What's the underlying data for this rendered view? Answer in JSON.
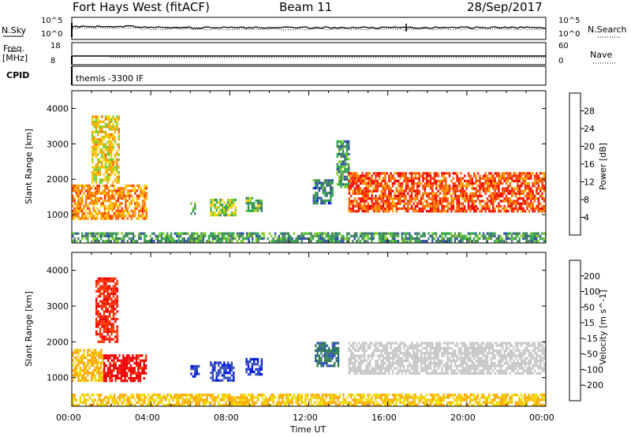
{
  "header": {
    "station": "Fort Hays West (fitACF)",
    "beam": "Beam 11",
    "date": "28/Sep/2017"
  },
  "top_panel": {
    "left_label": "N.Sky",
    "left_ticks": [
      "10^5",
      "10^0"
    ],
    "right_label": "N.Search",
    "right_ticks": [
      "10^5",
      "10^0"
    ]
  },
  "freq_panel": {
    "left_label_1": "Freq.",
    "left_label_2": "[MHz]",
    "left_ticks": [
      "18",
      "8"
    ],
    "right_label": "Nave",
    "right_ticks": [
      "60",
      "0"
    ]
  },
  "cpid_panel": {
    "label": "CPID",
    "mode": "themis -3300 IF"
  },
  "x_axis": {
    "title": "Time UT",
    "tick_labels": [
      "00:00",
      "04:00",
      "08:00",
      "12:00",
      "16:00",
      "20:00",
      "00:00"
    ]
  },
  "colors": {
    "power_scale": [
      "#0000ee",
      "#2d4ea8",
      "#3f7a5e",
      "#2ea84a",
      "#7ccc2a",
      "#ffd000",
      "#ffa500",
      "#ff6a00",
      "#ff2a00",
      "#ee0000"
    ],
    "velocity_scale": [
      "#0018d8",
      "#304cc0",
      "#2e7a55",
      "#3fa845",
      "#88e24a",
      "#c8c8c8",
      "#eedd00",
      "#ffaa00",
      "#ff7a00",
      "#ff3300",
      "#ee0000"
    ],
    "ground_gray": "#c8c8c8"
  },
  "chart_data": [
    {
      "type": "heatmap",
      "panel": "power",
      "ylabel": "Slant Range [km]",
      "xlabel": "",
      "xlim": [
        0,
        24
      ],
      "ylim": [
        200,
        4500
      ],
      "y_ticks": [
        "1000",
        "2000",
        "3000",
        "4000"
      ],
      "colorbar": {
        "title": "Power [dB]",
        "range": [
          0,
          32
        ],
        "tick_labels": [
          "4",
          "8",
          "12",
          "16",
          "20",
          "24",
          "28"
        ]
      },
      "echo_regions": [
        {
          "t_start": 0.0,
          "t_end": 3.8,
          "r_start": 900,
          "r_end": 1850,
          "value": 22
        },
        {
          "t_start": 1.0,
          "t_end": 2.4,
          "r_start": 1900,
          "r_end": 3800,
          "value": 18
        },
        {
          "t_start": 6.0,
          "t_end": 6.2,
          "r_start": 1050,
          "r_end": 1350,
          "value": 12
        },
        {
          "t_start": 7.0,
          "t_end": 8.3,
          "r_start": 1000,
          "r_end": 1450,
          "value": 14
        },
        {
          "t_start": 8.8,
          "t_end": 9.6,
          "r_start": 1100,
          "r_end": 1500,
          "value": 12
        },
        {
          "t_start": 12.2,
          "t_end": 13.2,
          "r_start": 1300,
          "r_end": 2000,
          "value": 8
        },
        {
          "t_start": 13.4,
          "t_end": 14.0,
          "r_start": 1800,
          "r_end": 3100,
          "value": 10
        },
        {
          "t_start": 14.0,
          "t_end": 24.0,
          "r_start": 1100,
          "r_end": 2200,
          "value": 26
        },
        {
          "t_start": 0.0,
          "t_end": 24.0,
          "r_start": 250,
          "r_end": 500,
          "value": 10
        }
      ]
    },
    {
      "type": "heatmap",
      "panel": "velocity",
      "ylabel": "Slant Range [km]",
      "xlabel": "Time UT",
      "xlim": [
        0,
        24
      ],
      "ylim": [
        200,
        4500
      ],
      "y_ticks": [
        "1000",
        "2000",
        "3000",
        "4000"
      ],
      "colorbar": {
        "title": "Velocity [m s^-1]",
        "range": [
          -250,
          250
        ],
        "tick_labels": [
          "200",
          "100",
          "50",
          "15",
          "-15",
          "-50",
          "-100",
          "-200"
        ]
      },
      "echo_regions": [
        {
          "t_start": 0.0,
          "t_end": 1.6,
          "r_start": 900,
          "r_end": 1800,
          "value": -80
        },
        {
          "t_start": 1.6,
          "t_end": 3.8,
          "r_start": 900,
          "r_end": 1650,
          "value": -220
        },
        {
          "t_start": 1.2,
          "t_end": 2.3,
          "r_start": 2000,
          "r_end": 3800,
          "value": -200
        },
        {
          "t_start": 6.0,
          "t_end": 6.4,
          "r_start": 1050,
          "r_end": 1350,
          "value": 200
        },
        {
          "t_start": 7.0,
          "t_end": 8.2,
          "r_start": 900,
          "r_end": 1450,
          "value": 200
        },
        {
          "t_start": 8.8,
          "t_end": 9.6,
          "r_start": 1100,
          "r_end": 1550,
          "value": 200
        },
        {
          "t_start": 12.3,
          "t_end": 13.5,
          "r_start": 1300,
          "r_end": 2000,
          "value": 150
        },
        {
          "t_start": 14.0,
          "t_end": 24.0,
          "r_start": 1100,
          "r_end": 2000,
          "value": 0
        },
        {
          "t_start": 0.0,
          "t_end": 24.0,
          "r_start": 250,
          "r_end": 550,
          "value": -70
        }
      ]
    }
  ]
}
